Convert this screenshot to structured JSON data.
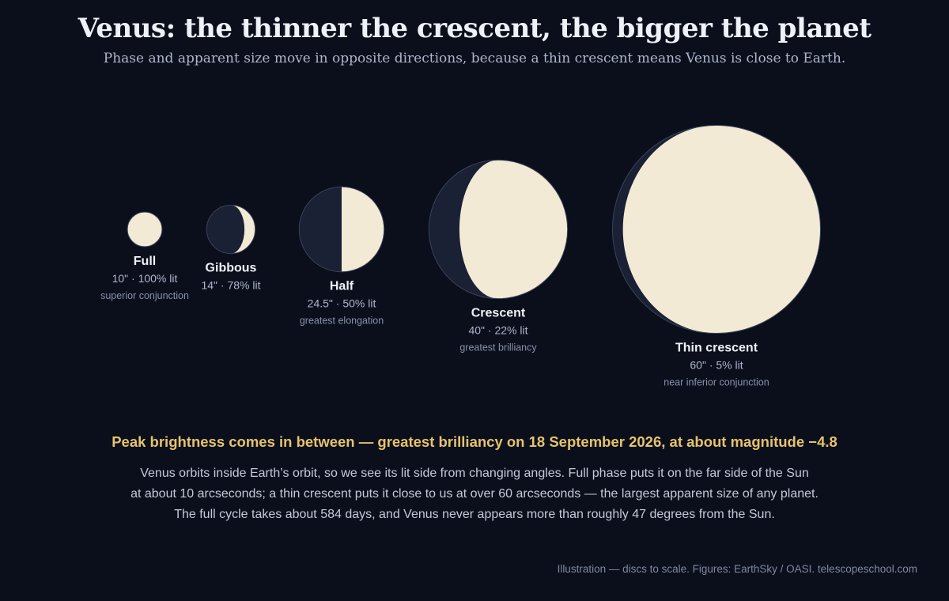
{
  "header": {
    "title": "Venus: the thinner the crescent, the bigger the planet",
    "subtitle": "Phase and apparent size move in opposite directions, because a thin crescent means Venus is close to Earth."
  },
  "colors": {
    "background": "#0b0f1c",
    "lit": "#f3ead5",
    "dark": "#1b2134",
    "accent": "#e7c36a"
  },
  "phases": [
    {
      "name": "Full",
      "stats": "10\" · 100% lit",
      "note": "superior conjunction",
      "arcsec": 10,
      "lit_fraction": 1.0
    },
    {
      "name": "Gibbous",
      "stats": "14\" · 78% lit",
      "note": "",
      "arcsec": 14,
      "lit_fraction": 0.78
    },
    {
      "name": "Half",
      "stats": "24.5\" · 50% lit",
      "note": "greatest elongation",
      "arcsec": 24.5,
      "lit_fraction": 0.5
    },
    {
      "name": "Crescent",
      "stats": "40\" · 22% lit",
      "note": "greatest brilliancy",
      "arcsec": 40,
      "lit_fraction": 0.22
    },
    {
      "name": "Thin crescent",
      "stats": "60\" · 5% lit",
      "note": "near inferior conjunction",
      "arcsec": 60,
      "lit_fraction": 0.05
    }
  ],
  "headline": "Peak brightness comes in between — greatest brilliancy on 18 September 2026, at about magnitude −4.8",
  "body_lines": [
    "Venus orbits inside Earth’s orbit, so we see its lit side from changing angles. Full phase puts it on the far side of the Sun",
    "at about 10 arcseconds; a thin crescent puts it close to us at over 60 arcseconds — the largest apparent size of any planet.",
    "The full cycle takes about 584 days, and Venus never appears more than roughly 47 degrees from the Sun."
  ],
  "footer": "Illustration — discs to scale. Figures: EarthSky / OASI. telescopeschool.com"
}
